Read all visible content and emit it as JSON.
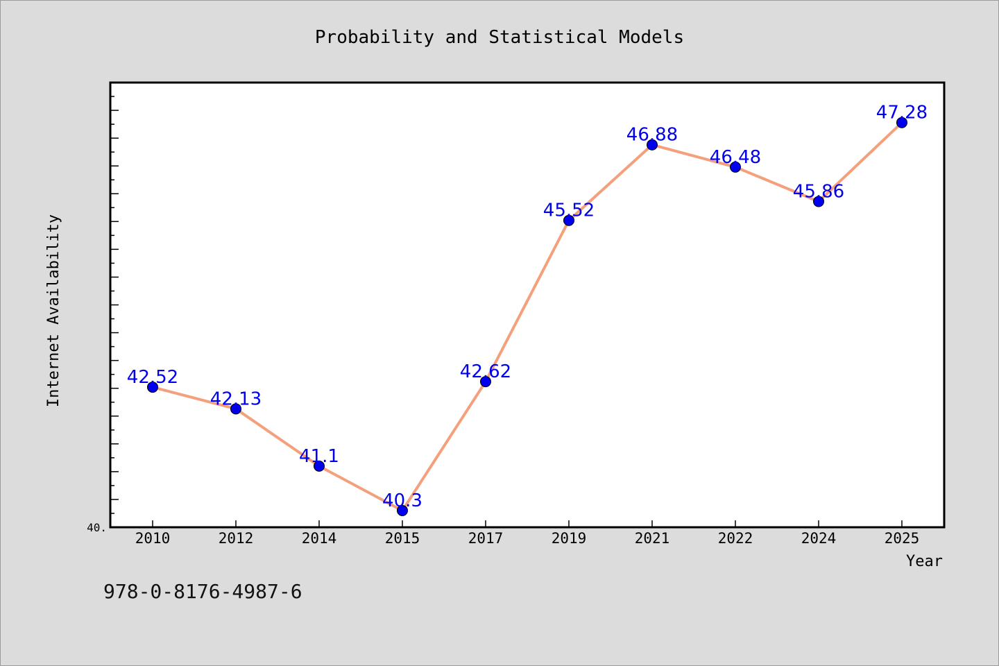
{
  "chart_data": {
    "type": "line",
    "title": "Probability and Statistical Models",
    "xlabel": "Year",
    "ylabel": "Internet Availability",
    "categories": [
      "2010",
      "2012",
      "2014",
      "2015",
      "2017",
      "2019",
      "2021",
      "2022",
      "2024",
      "2025"
    ],
    "series": [
      {
        "values": [
          42.52,
          42.13,
          41.1,
          40.3,
          42.62,
          45.52,
          46.88,
          46.48,
          45.86,
          47.28
        ],
        "data_labels": [
          "42.52",
          "42.13",
          "41.1",
          "40.3",
          "42.62",
          "45.52",
          "46.88",
          "46.48",
          "45.86",
          "47.28"
        ]
      }
    ],
    "ylim": [
      40.0,
      48.0
    ],
    "ytick_labels": [
      "40."
    ],
    "grid": false,
    "legend": "none",
    "colors": {
      "line": "#f4a07c",
      "marker": "#0000ee",
      "data_label": "#0000ee",
      "plot_background": "#ffffff",
      "figure_background": "#dcdcdc"
    }
  },
  "footer": {
    "isbn": "978-0-8176-4987-6"
  }
}
